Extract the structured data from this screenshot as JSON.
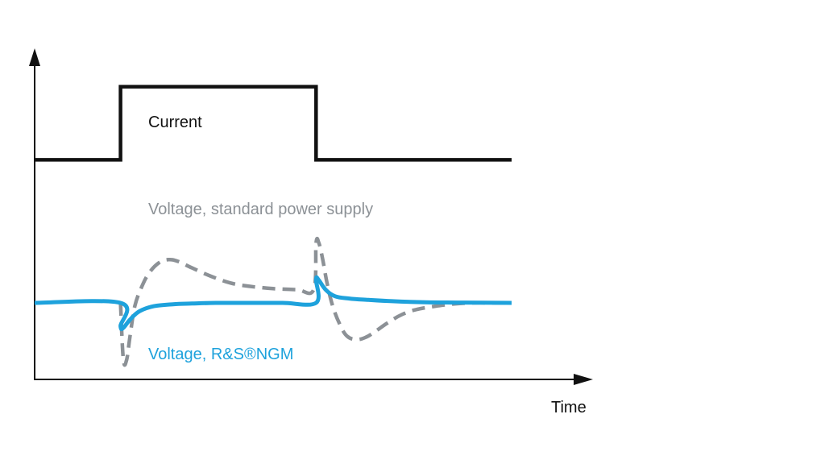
{
  "chart_data": {
    "type": "line",
    "title": "",
    "xlabel": "Time",
    "ylabel": "",
    "grid": false,
    "legend": "none",
    "x_range": [
      0,
      100
    ],
    "y_range": [
      0,
      100
    ],
    "series": [
      {
        "name": "Current",
        "color": "#111111",
        "style": "solid",
        "x": [
          0,
          18,
          18,
          59,
          59,
          100
        ],
        "y": [
          66,
          66,
          88,
          88,
          66,
          66
        ]
      },
      {
        "name": "Voltage, standard power supply",
        "color": "#8c9196",
        "style": "dashed",
        "x": [
          18,
          18.6,
          19.3,
          20,
          21,
          22.5,
          24,
          26,
          28,
          30,
          33,
          37,
          41,
          45,
          50,
          55,
          58.5,
          59,
          59.6,
          60.4,
          61.3,
          62.5,
          64,
          65.5,
          67.5,
          69.5,
          71.5,
          74,
          77,
          80,
          84,
          88,
          92,
          96,
          100
        ],
        "y": [
          23,
          6,
          6,
          13,
          22,
          28,
          32,
          35,
          36,
          35.5,
          33.5,
          31,
          29,
          28,
          27.3,
          27,
          27,
          41,
          41,
          36,
          29,
          22,
          16.5,
          13,
          12,
          12.7,
          14.5,
          17,
          19.5,
          21,
          22,
          22.7,
          23,
          23,
          23
        ]
      },
      {
        "name": "Voltage, R&S®NGM",
        "color": "#1ea2dc",
        "style": "solid",
        "x": [
          0,
          18,
          18,
          18.6,
          20,
          22,
          25,
          29,
          33,
          38,
          45,
          52,
          59,
          59,
          59.5,
          61,
          63,
          66,
          70,
          75,
          82,
          90,
          100
        ],
        "y": [
          23,
          23,
          16,
          15.5,
          18,
          20.5,
          22,
          22.6,
          22.8,
          23,
          23,
          23,
          23,
          30,
          30,
          27,
          25,
          24.3,
          23.9,
          23.5,
          23.2,
          23.1,
          23
        ]
      }
    ],
    "annotations": [
      {
        "text": "Current",
        "color": "#111111"
      },
      {
        "text": "Voltage, standard power supply",
        "color": "#8c9196"
      },
      {
        "text": "Voltage, R&S®NGM",
        "color": "#1ea2dc"
      }
    ]
  }
}
